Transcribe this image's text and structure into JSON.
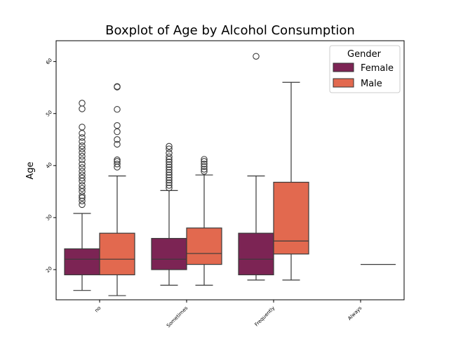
{
  "chart_data": {
    "type": "boxplot",
    "title": "Boxplot of Age by Alcohol Consumption",
    "xlabel": "",
    "ylabel": "Age",
    "categories": [
      "no",
      "Sometimes",
      "Frequently",
      "Always"
    ],
    "ylim": [
      14.2,
      64
    ],
    "yticks": [
      20,
      30,
      40,
      50,
      60
    ],
    "legend": {
      "title": "Gender",
      "placement": "top-right"
    },
    "grid": false,
    "series": [
      {
        "name": "Female",
        "color": "#7c2454",
        "boxes": [
          {
            "category": "no",
            "whislo": 16,
            "q1": 19,
            "med": 22,
            "q3": 24,
            "whishi": 30.8,
            "fliers": [
              32.5,
              33.2,
              33.8,
              34.2,
              35.0,
              35.6,
              36.2,
              37.0,
              37.6,
              38.2,
              38.9,
              39.6,
              40.3,
              41.1,
              41.8,
              42.5,
              43.2,
              43.8,
              44.6,
              45.4,
              46.2,
              47.4,
              50.9,
              52.0
            ]
          },
          {
            "category": "Sometimes",
            "whislo": 17,
            "q1": 20,
            "med": 22,
            "q3": 26,
            "whishi": 35.2,
            "fliers": [
              35.7,
              36.2,
              36.7,
              37.2,
              37.7,
              38.2,
              38.7,
              39.2,
              39.7,
              40.2,
              40.7,
              41.2,
              41.7,
              42.4,
              43.2,
              43.7
            ]
          },
          {
            "category": "Frequently",
            "whislo": 18,
            "q1": 19,
            "med": 22,
            "q3": 27,
            "whishi": 38,
            "fliers": [
              61
            ]
          }
        ]
      },
      {
        "name": "Male",
        "color": "#e2694f",
        "boxes": [
          {
            "category": "no",
            "whislo": 15,
            "q1": 19,
            "med": 22,
            "q3": 27,
            "whishi": 38,
            "fliers": [
              39.7,
              40.3,
              40.8,
              41.1,
              44.1,
              45.0,
              46.5,
              47.7,
              50.8,
              55.1,
              55.2
            ]
          },
          {
            "category": "Sometimes",
            "whislo": 17,
            "q1": 21,
            "med": 23.1,
            "q3": 28,
            "whishi": 38.2,
            "fliers": [
              38.9,
              39.3,
              39.8,
              40.3,
              40.8,
              41.2
            ]
          },
          {
            "category": "Frequently",
            "whislo": 18,
            "q1": 23,
            "med": 25.5,
            "q3": 36.8,
            "whishi": 56,
            "fliers": []
          },
          {
            "category": "Always",
            "whislo": 21,
            "q1": 21,
            "med": 21,
            "q3": 21,
            "whishi": 21,
            "fliers": []
          }
        ]
      }
    ]
  }
}
